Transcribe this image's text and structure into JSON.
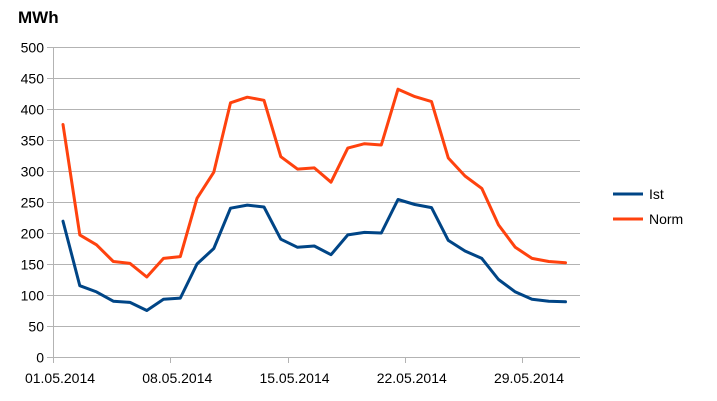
{
  "chart_data": {
    "type": "line",
    "title": "MWh",
    "xlabel": "",
    "ylabel": "",
    "ylim": [
      0,
      500
    ],
    "yticks": [
      0,
      50,
      100,
      150,
      200,
      250,
      300,
      350,
      400,
      450,
      500
    ],
    "grid": true,
    "legend_position": "right",
    "x": [
      "01.05.2014",
      "02.05.2014",
      "03.05.2014",
      "04.05.2014",
      "05.05.2014",
      "06.05.2014",
      "07.05.2014",
      "08.05.2014",
      "09.05.2014",
      "10.05.2014",
      "11.05.2014",
      "12.05.2014",
      "13.05.2014",
      "14.05.2014",
      "15.05.2014",
      "16.05.2014",
      "17.05.2014",
      "18.05.2014",
      "19.05.2014",
      "20.05.2014",
      "21.05.2014",
      "22.05.2014",
      "23.05.2014",
      "24.05.2014",
      "25.05.2014",
      "26.05.2014",
      "27.05.2014",
      "28.05.2014",
      "29.05.2014",
      "30.05.2014",
      "31.05.2014"
    ],
    "xtick_labels": [
      "01.05.2014",
      "08.05.2014",
      "15.05.2014",
      "22.05.2014",
      "29.05.2014"
    ],
    "series": [
      {
        "name": "Ist",
        "color": "#004586",
        "values": [
          219,
          115,
          105,
          90,
          88,
          75,
          93,
          95,
          150,
          175,
          240,
          245,
          242,
          190,
          177,
          179,
          165,
          197,
          201,
          200,
          254,
          246,
          241,
          188,
          171,
          159,
          125,
          105,
          93,
          90,
          89
        ]
      },
      {
        "name": "Norm",
        "color": "#ff420e",
        "values": [
          375,
          197,
          181,
          154,
          151,
          129,
          159,
          162,
          256,
          298,
          410,
          419,
          414,
          323,
          303,
          305,
          282,
          337,
          344,
          342,
          432,
          420,
          412,
          321,
          292,
          272,
          213,
          177,
          159,
          154,
          152
        ]
      }
    ]
  }
}
